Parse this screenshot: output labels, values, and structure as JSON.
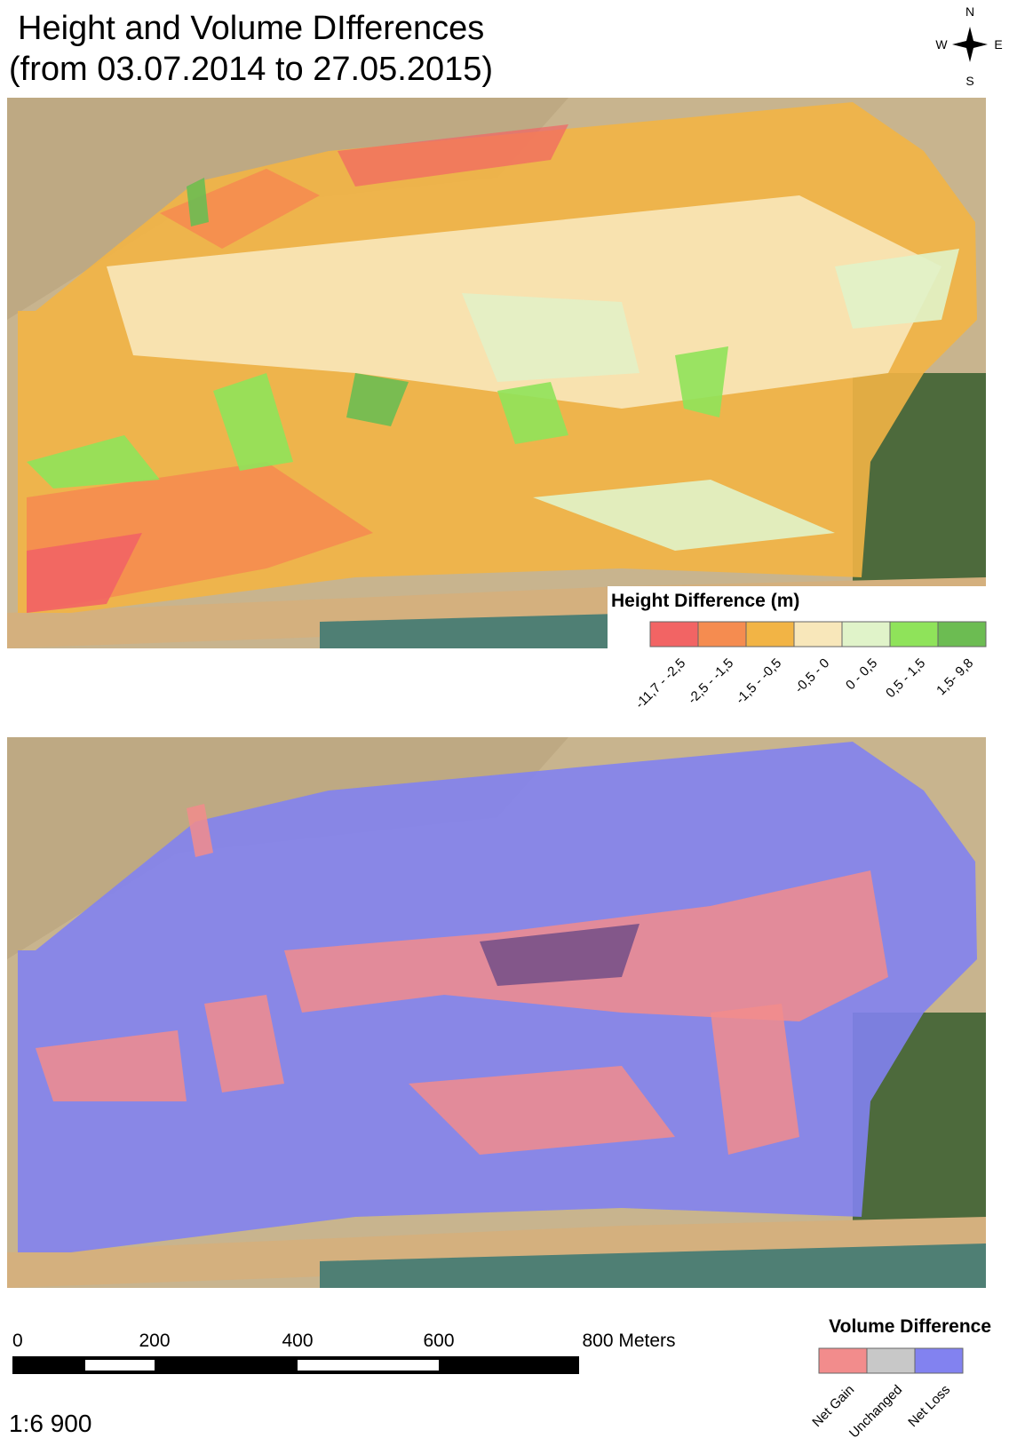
{
  "title": [
    "Height and Volume DIfferences",
    "(from 03.07.2014 to 27.05.2015)"
  ],
  "compass": {
    "n": "N",
    "e": "E",
    "s": "S",
    "w": "W"
  },
  "height_legend": {
    "title": "Height Difference (m)",
    "classes": [
      {
        "label": "-11,7 - -2,5",
        "color": "#f26464"
      },
      {
        "label": "-2,5 - -1,5",
        "color": "#f58c50"
      },
      {
        "label": "-1,5 - -0,5",
        "color": "#f2b445"
      },
      {
        "label": "-0,5 - 0",
        "color": "#f8e7ba"
      },
      {
        "label": "0 - 0,5",
        "color": "#e0f3c9"
      },
      {
        "label": "0,5 - 1,5",
        "color": "#8fe35a"
      },
      {
        "label": "1,5- 9,8",
        "color": "#6cbc52"
      }
    ]
  },
  "volume_legend": {
    "title": "Volume Difference",
    "classes": [
      {
        "label": "Net Gain",
        "color": "#f28c8c"
      },
      {
        "label": "Unchanged",
        "color": "#c8c8c8"
      },
      {
        "label": "Net Loss",
        "color": "#8282f0"
      }
    ]
  },
  "scale_bar": {
    "labels": [
      "0",
      "200",
      "400",
      "600",
      "800 Meters"
    ]
  },
  "scale": "1:6 900"
}
